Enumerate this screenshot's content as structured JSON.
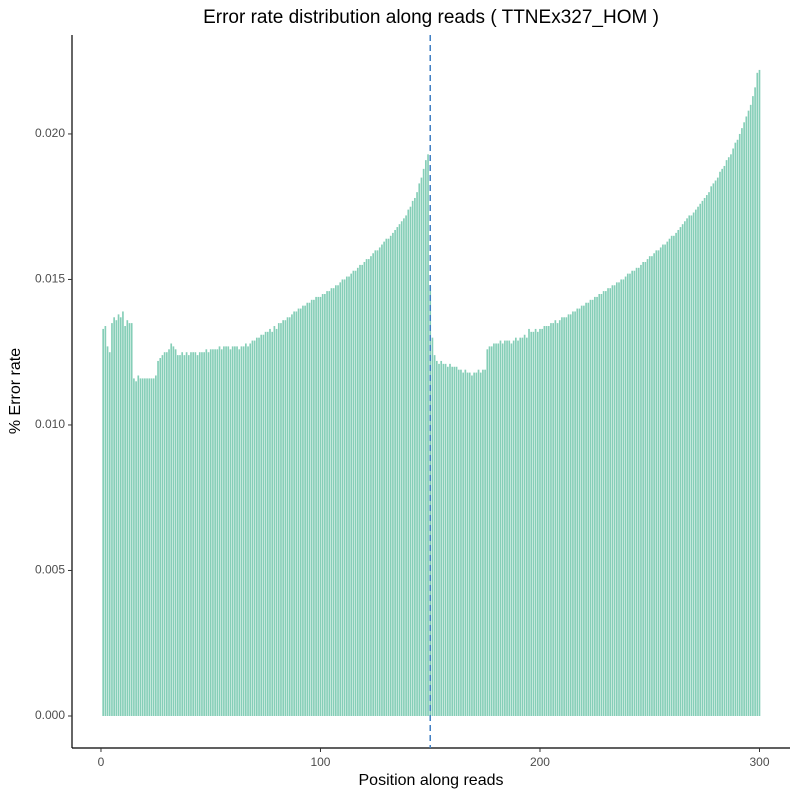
{
  "chart_data": {
    "type": "bar",
    "title": "Error rate distribution along reads ( TTNEx327_HOM )",
    "x_label": "Position along reads",
    "y_label": "% Error rate",
    "color": "#66c2a5",
    "vline": 150,
    "vline_color": "#3f7fc4",
    "xlim": [
      -13.2,
      313.9
    ],
    "xticks": [
      0,
      100,
      200,
      300
    ],
    "ylim": [
      -0.0011,
      0.0234
    ],
    "yticks": [
      {
        "value": 0,
        "label": "0.000"
      },
      {
        "value": 0.005,
        "label": "0.005"
      },
      {
        "value": 0.01,
        "label": "0.010"
      },
      {
        "value": 0.015,
        "label": "0.015"
      },
      {
        "value": 0.02,
        "label": "0.020"
      }
    ],
    "x": [
      1,
      2,
      3,
      4,
      5,
      6,
      7,
      8,
      9,
      10,
      11,
      12,
      13,
      14,
      15,
      16,
      17,
      18,
      19,
      20,
      21,
      22,
      23,
      24,
      25,
      26,
      27,
      28,
      29,
      30,
      31,
      32,
      33,
      34,
      35,
      36,
      37,
      38,
      39,
      40,
      41,
      42,
      43,
      44,
      45,
      46,
      47,
      48,
      49,
      50,
      51,
      52,
      53,
      54,
      55,
      56,
      57,
      58,
      59,
      60,
      61,
      62,
      63,
      64,
      65,
      66,
      67,
      68,
      69,
      70,
      71,
      72,
      73,
      74,
      75,
      76,
      77,
      78,
      79,
      80,
      81,
      82,
      83,
      84,
      85,
      86,
      87,
      88,
      89,
      90,
      91,
      92,
      93,
      94,
      95,
      96,
      97,
      98,
      99,
      100,
      101,
      102,
      103,
      104,
      105,
      106,
      107,
      108,
      109,
      110,
      111,
      112,
      113,
      114,
      115,
      116,
      117,
      118,
      119,
      120,
      121,
      122,
      123,
      124,
      125,
      126,
      127,
      128,
      129,
      130,
      131,
      132,
      133,
      134,
      135,
      136,
      137,
      138,
      139,
      140,
      141,
      142,
      143,
      144,
      145,
      146,
      147,
      148,
      149,
      150,
      151,
      152,
      153,
      154,
      155,
      156,
      157,
      158,
      159,
      160,
      161,
      162,
      163,
      164,
      165,
      166,
      167,
      168,
      169,
      170,
      171,
      172,
      173,
      174,
      175,
      176,
      177,
      178,
      179,
      180,
      181,
      182,
      183,
      184,
      185,
      186,
      187,
      188,
      189,
      190,
      191,
      192,
      193,
      194,
      195,
      196,
      197,
      198,
      199,
      200,
      201,
      202,
      203,
      204,
      205,
      206,
      207,
      208,
      209,
      210,
      211,
      212,
      213,
      214,
      215,
      216,
      217,
      218,
      219,
      220,
      221,
      222,
      223,
      224,
      225,
      226,
      227,
      228,
      229,
      230,
      231,
      232,
      233,
      234,
      235,
      236,
      237,
      238,
      239,
      240,
      241,
      242,
      243,
      244,
      245,
      246,
      247,
      248,
      249,
      250,
      251,
      252,
      253,
      254,
      255,
      256,
      257,
      258,
      259,
      260,
      261,
      262,
      263,
      264,
      265,
      266,
      267,
      268,
      269,
      270,
      271,
      272,
      273,
      274,
      275,
      276,
      277,
      278,
      279,
      280,
      281,
      282,
      283,
      284,
      285,
      286,
      287,
      288,
      289,
      290,
      291,
      292,
      293,
      294,
      295,
      296,
      297,
      298,
      299,
      300
    ],
    "values": [
      0.0133,
      0.0134,
      0.0127,
      0.0125,
      0.0135,
      0.0137,
      0.0136,
      0.0138,
      0.0137,
      0.0139,
      0.0134,
      0.0136,
      0.0135,
      0.0135,
      0.0116,
      0.0115,
      0.0117,
      0.0116,
      0.0116,
      0.0116,
      0.0116,
      0.0116,
      0.0116,
      0.0116,
      0.0117,
      0.0122,
      0.0123,
      0.0124,
      0.0125,
      0.0125,
      0.0126,
      0.0128,
      0.0127,
      0.0126,
      0.0124,
      0.0124,
      0.0125,
      0.0124,
      0.0125,
      0.0124,
      0.0125,
      0.0125,
      0.0125,
      0.0124,
      0.0125,
      0.0125,
      0.0125,
      0.0126,
      0.0125,
      0.0126,
      0.0126,
      0.0126,
      0.0126,
      0.0127,
      0.0126,
      0.0127,
      0.0127,
      0.0127,
      0.0126,
      0.0127,
      0.0127,
      0.0127,
      0.0126,
      0.0127,
      0.0127,
      0.0128,
      0.0127,
      0.0128,
      0.0129,
      0.0129,
      0.013,
      0.013,
      0.0131,
      0.0131,
      0.0132,
      0.0132,
      0.0133,
      0.0132,
      0.0134,
      0.0133,
      0.0135,
      0.0135,
      0.0136,
      0.0136,
      0.0137,
      0.0137,
      0.0138,
      0.0139,
      0.0139,
      0.014,
      0.014,
      0.0141,
      0.0141,
      0.0142,
      0.0142,
      0.0143,
      0.0143,
      0.0144,
      0.0144,
      0.0144,
      0.0145,
      0.0145,
      0.0146,
      0.0146,
      0.0147,
      0.0147,
      0.0148,
      0.0148,
      0.0149,
      0.015,
      0.015,
      0.0151,
      0.0151,
      0.0152,
      0.0153,
      0.0153,
      0.0154,
      0.0155,
      0.0155,
      0.0156,
      0.0157,
      0.0157,
      0.0158,
      0.0159,
      0.016,
      0.016,
      0.0161,
      0.0162,
      0.0163,
      0.0164,
      0.0164,
      0.0165,
      0.0166,
      0.0167,
      0.0168,
      0.0169,
      0.017,
      0.0171,
      0.0172,
      0.0174,
      0.0175,
      0.0177,
      0.0178,
      0.018,
      0.0183,
      0.0185,
      0.0188,
      0.0191,
      0.0193,
      0.0148,
      0.013,
      0.0124,
      0.0122,
      0.0121,
      0.0122,
      0.0121,
      0.0121,
      0.012,
      0.0121,
      0.012,
      0.012,
      0.012,
      0.0119,
      0.0119,
      0.0118,
      0.0119,
      0.0118,
      0.0118,
      0.0117,
      0.0118,
      0.0118,
      0.0119,
      0.0118,
      0.0119,
      0.0119,
      0.0126,
      0.0127,
      0.0127,
      0.0128,
      0.0128,
      0.0128,
      0.0129,
      0.0128,
      0.0129,
      0.0129,
      0.0129,
      0.0128,
      0.0129,
      0.013,
      0.0129,
      0.013,
      0.013,
      0.0131,
      0.013,
      0.0133,
      0.0132,
      0.0132,
      0.0133,
      0.0132,
      0.0133,
      0.0133,
      0.0134,
      0.0134,
      0.0134,
      0.0135,
      0.0135,
      0.0136,
      0.0135,
      0.0136,
      0.0137,
      0.0137,
      0.0137,
      0.0138,
      0.0138,
      0.0139,
      0.0139,
      0.014,
      0.014,
      0.0141,
      0.0141,
      0.0142,
      0.0142,
      0.0143,
      0.0143,
      0.0144,
      0.0144,
      0.0145,
      0.0145,
      0.0146,
      0.0146,
      0.0147,
      0.0147,
      0.0148,
      0.0148,
      0.0149,
      0.0149,
      0.015,
      0.015,
      0.0151,
      0.0152,
      0.0152,
      0.0153,
      0.0153,
      0.0154,
      0.0154,
      0.0155,
      0.0156,
      0.0156,
      0.0157,
      0.0158,
      0.0158,
      0.0159,
      0.016,
      0.016,
      0.0161,
      0.0162,
      0.0162,
      0.0163,
      0.0164,
      0.0165,
      0.0165,
      0.0166,
      0.0167,
      0.0168,
      0.0169,
      0.017,
      0.0171,
      0.0172,
      0.0172,
      0.0173,
      0.0174,
      0.0175,
      0.0176,
      0.0177,
      0.0178,
      0.0179,
      0.018,
      0.0182,
      0.0183,
      0.0184,
      0.0185,
      0.0187,
      0.0188,
      0.0189,
      0.0191,
      0.0192,
      0.0193,
      0.0195,
      0.0197,
      0.0198,
      0.02,
      0.0202,
      0.0204,
      0.0206,
      0.0208,
      0.021,
      0.0213,
      0.0216,
      0.0221,
      0.0222
    ]
  }
}
